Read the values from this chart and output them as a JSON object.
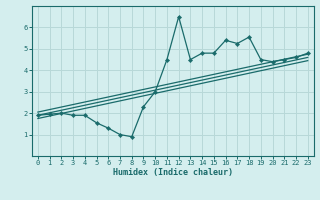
{
  "xlabel": "Humidex (Indice chaleur)",
  "bg_color": "#d4eeee",
  "line_color": "#1a6b6b",
  "grid_color": "#b8d8d8",
  "xlim": [
    -0.5,
    23.5
  ],
  "ylim": [
    0,
    7
  ],
  "xticks": [
    0,
    1,
    2,
    3,
    4,
    5,
    6,
    7,
    8,
    9,
    10,
    11,
    12,
    13,
    14,
    15,
    16,
    17,
    18,
    19,
    20,
    21,
    22,
    23
  ],
  "yticks": [
    1,
    2,
    3,
    4,
    5,
    6
  ],
  "data_x": [
    0,
    1,
    2,
    3,
    4,
    5,
    6,
    7,
    8,
    9,
    10,
    11,
    12,
    13,
    14,
    15,
    16,
    17,
    18,
    19,
    20,
    21,
    22,
    23
  ],
  "data_y": [
    1.9,
    1.95,
    2.0,
    1.9,
    1.9,
    1.55,
    1.3,
    1.0,
    0.9,
    2.3,
    3.0,
    4.5,
    6.5,
    4.5,
    4.8,
    4.8,
    5.4,
    5.25,
    5.55,
    4.5,
    4.4,
    4.5,
    4.6,
    4.8
  ],
  "reg_lines": [
    {
      "x": [
        0,
        23
      ],
      "y": [
        1.75,
        4.45
      ]
    },
    {
      "x": [
        0,
        23
      ],
      "y": [
        1.9,
        4.6
      ]
    },
    {
      "x": [
        0,
        23
      ],
      "y": [
        2.05,
        4.75
      ]
    }
  ]
}
